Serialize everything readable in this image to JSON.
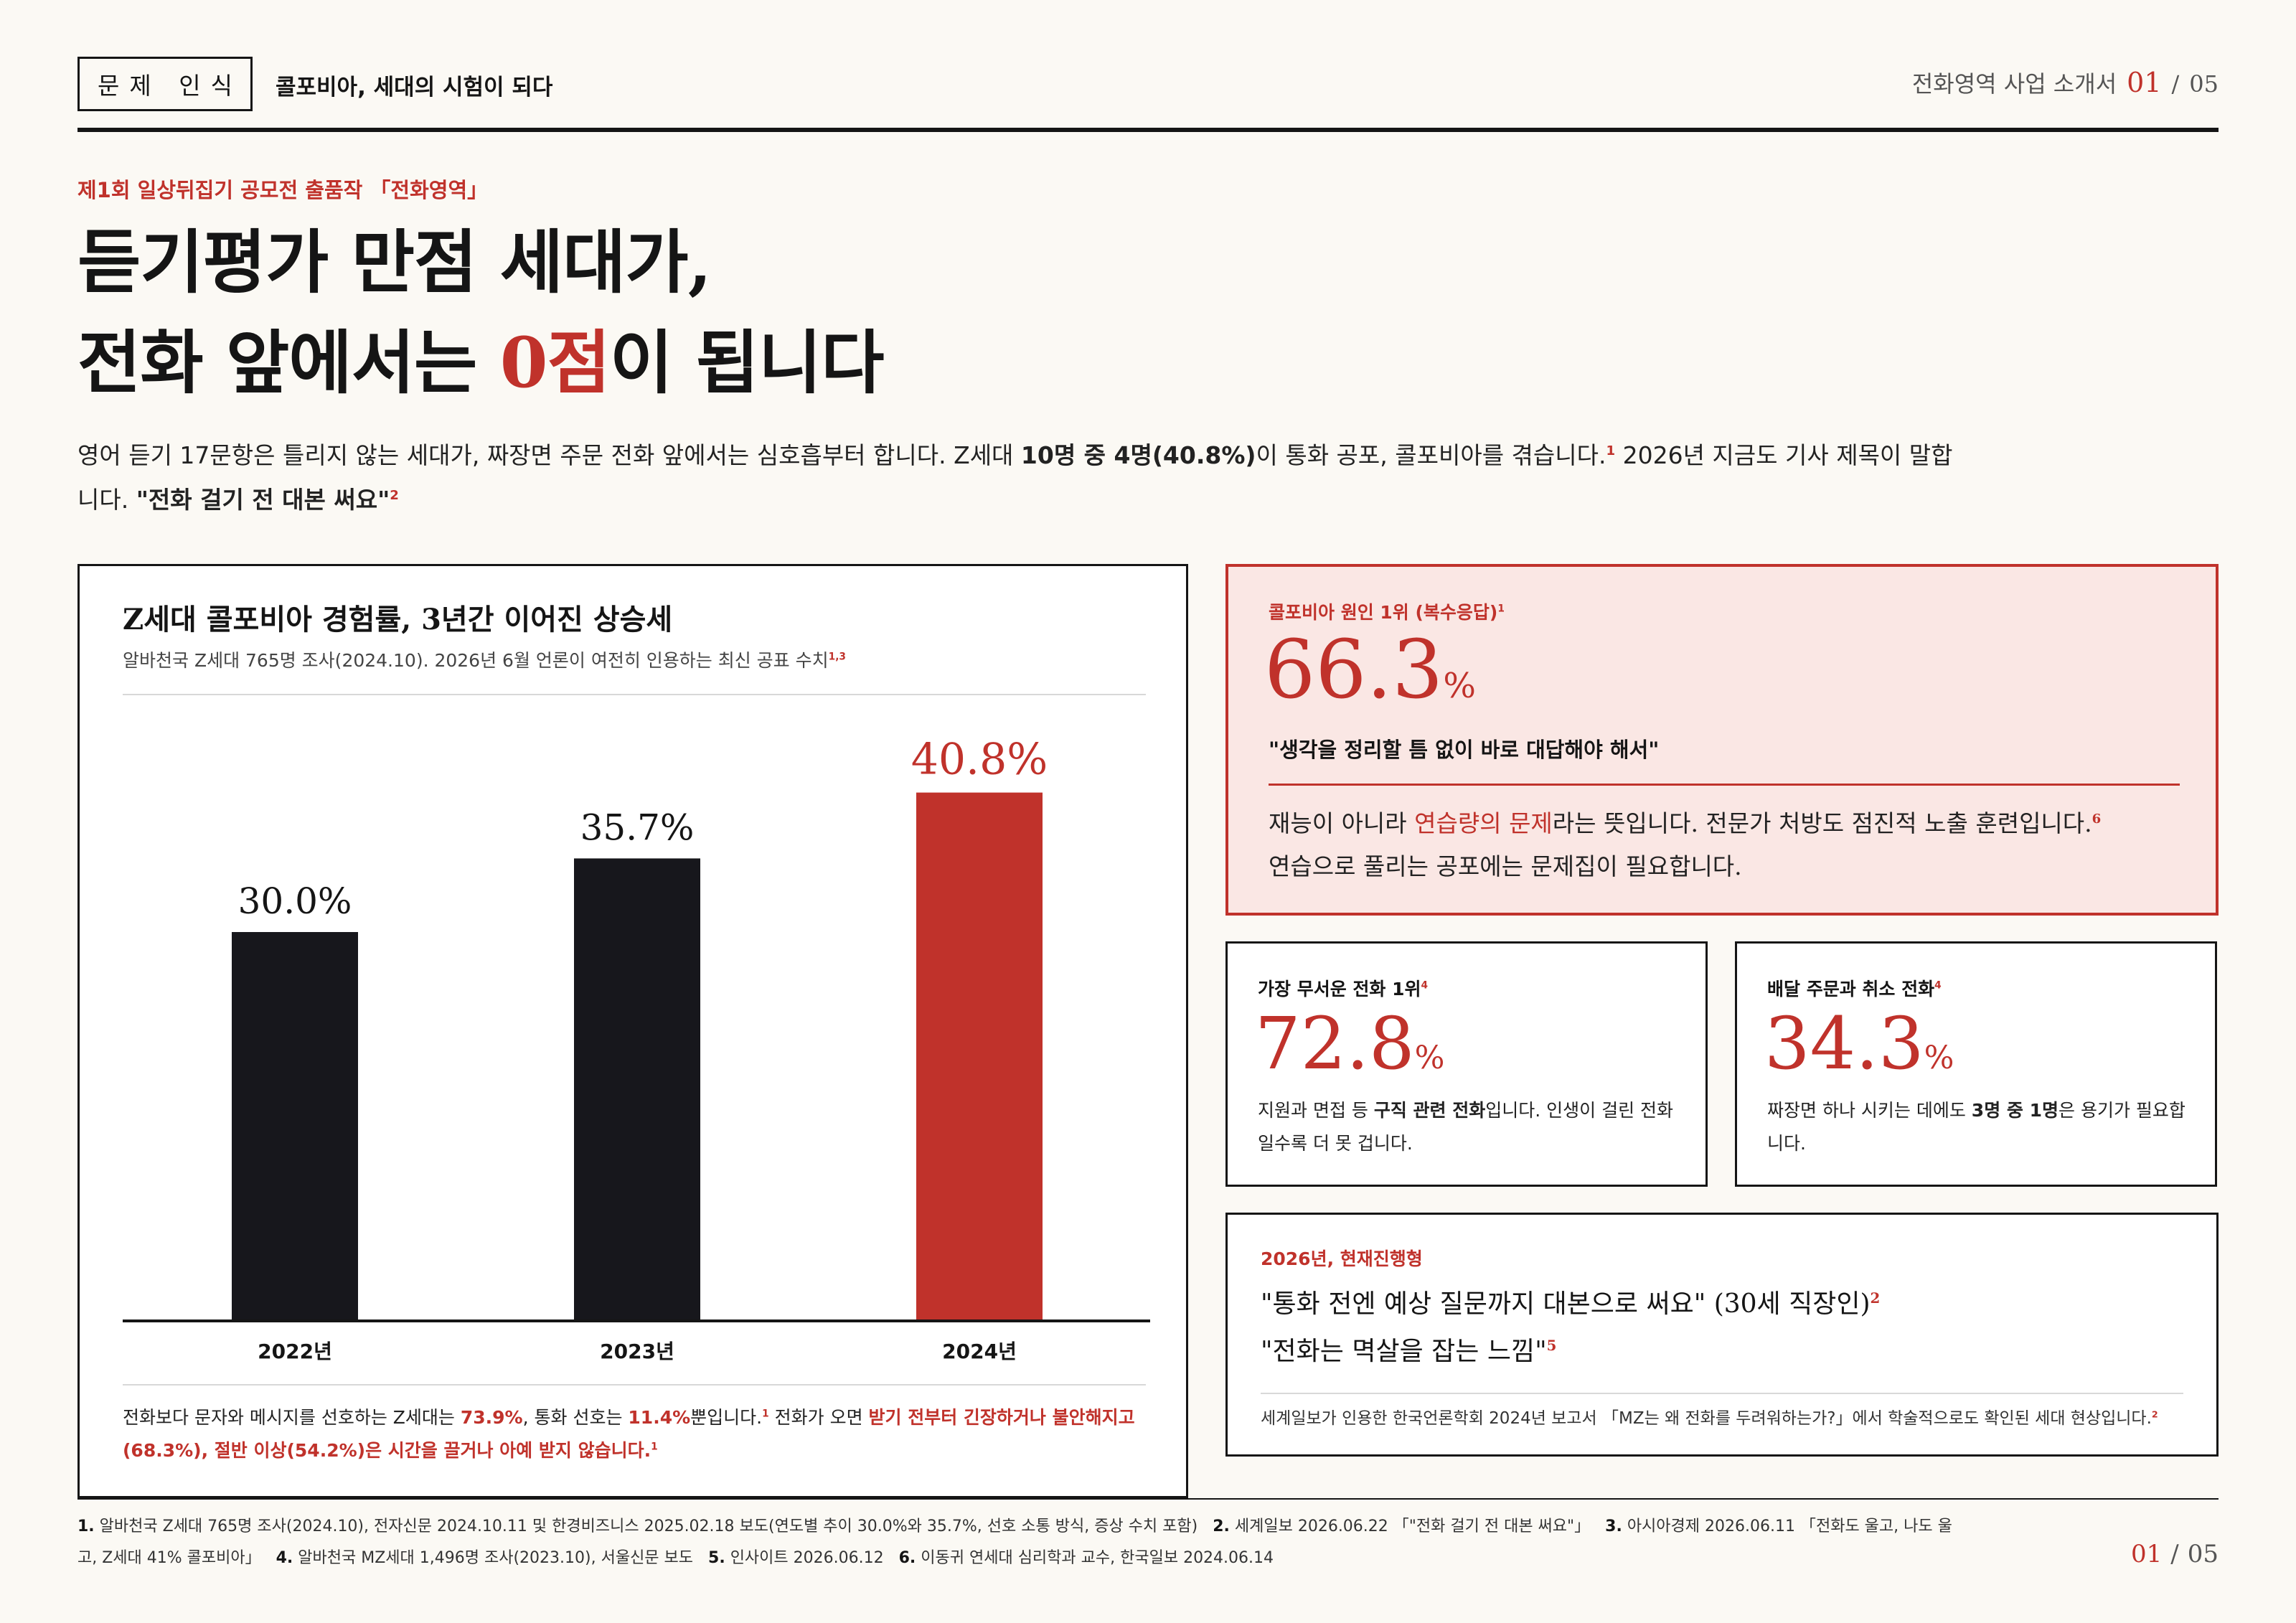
{
  "header": {
    "tag": "문제 인식",
    "subtitle": "콜포비아, 세대의 시험이 되다",
    "doc_title": "전화영역 사업 소개서",
    "page_current": "01",
    "page_sep": "/",
    "page_total": "05"
  },
  "kicker": "제1회 일상뒤집기 공모전 출품작 「전화영역」",
  "headline": {
    "line1": "듣기평가 만점 세대가,",
    "line2_pre": "전화 앞에서는 ",
    "line2_red": "0점",
    "line2_post": "이 됩니다"
  },
  "lede": {
    "p1": "영어 듣기 17문항은 틀리지 않는 세대가, 짜장면 주문 전화 앞에서는 심호흡부터 합니다. Z세대 ",
    "bold1": "10명 중 4명(40.8%)",
    "p2": "이 통화 공포, 콜포비아를 겪습니다.",
    "sup1": "1",
    "p3": " 2026년 지금도 기사 제목이 말합니다. ",
    "bold2": "\"전화 걸기 전 대본 써요\"",
    "sup2": "2"
  },
  "chart_card": {
    "title": "Z세대 콜포비아 경험률, 3년간 이어진 상승세",
    "subtitle": "알바천국 Z세대 765명 조사(2024.10). 2026년 6월 언론이 여전히 인용하는 최신 공표 수치",
    "subtitle_sup": "1,3",
    "foot": {
      "t1": "전화보다 문자와 메시지를 선호하는 Z세대는 ",
      "r1": "73.9%",
      "t2": ", 통화 선호는 ",
      "r2": "11.4%",
      "t3": "뿐입니다.",
      "s1": "1",
      "t4": " 전화가 오면 ",
      "r3": "받기 전부터 긴장하거나 불안해지고(68.3%), 절반 이상(54.2%)은 시간을 끌거나 아예 받지 않습니다.",
      "s2": "1"
    }
  },
  "chart_data": {
    "type": "bar",
    "title": "Z세대 콜포비아 경험률, 3년간 이어진 상승세",
    "categories": [
      "2022년",
      "2023년",
      "2024년"
    ],
    "values": [
      30.0,
      35.7,
      40.8
    ],
    "value_labels": [
      "30.0%",
      "35.7%",
      "40.8%"
    ],
    "colors": [
      "#17171c",
      "#17171c",
      "#c0322b"
    ],
    "ylim": [
      0,
      45
    ],
    "grid": false,
    "xlabel": "",
    "ylabel": ""
  },
  "cause_card": {
    "label": "콜포비아 원인 1위 (복수응답)",
    "label_sup": "1",
    "stat": "66.3",
    "pct": "%",
    "quote": "\"생각을 정리할 틈 없이 바로 대답해야 해서\"",
    "b1": "재능이 아니라 ",
    "b_red": "연습량의 문제",
    "b2": "라는 뜻입니다. 전문가 처방도 점진적 노출 훈련입니다.",
    "b_sup": "6",
    "b3": "연습으로 풀리는 공포에는 문제집이 필요합니다."
  },
  "stat_a": {
    "label": "가장 무서운 전화 1위",
    "sup": "4",
    "stat": "72.8",
    "pct": "%",
    "t1": "지원과 면접 등 ",
    "bold": "구직 관련 전화",
    "t2": "입니다. 인생이 걸린 전화일수록 더 못 겁니다."
  },
  "stat_b": {
    "label": "배달 주문과 취소 전화",
    "sup": "4",
    "stat": "34.3",
    "pct": "%",
    "t1": "짜장면 하나 시키는 데에도 ",
    "bold": "3명 중 1명",
    "t2": "은 용기가 필요합니다."
  },
  "quote_card": {
    "label": "2026년, 현재진행형",
    "q1": "\"통화 전엔 예상 질문까지 대본으로 써요\" (30세 직장인)",
    "q1_sup": "2",
    "q2": "\"전화는 멱살을 잡는 느낌\"",
    "q2_sup": "5",
    "foot": "세계일보가 인용한 한국언론학회 2024년 보고서 「MZ는 왜 전화를 두려워하는가?」에서 학술적으로도 확인된 세대 현상입니다.",
    "foot_sup": "2"
  },
  "notes": [
    {
      "n": "1.",
      "t": "알바천국 Z세대 765명 조사(2024.10), 전자신문 2024.10.11 및 한경비즈니스 2025.02.18 보도(연도별 추이 30.0%와 35.7%, 선호 소통 방식, 증상 수치 포함)"
    },
    {
      "n": "2.",
      "t": "세계일보 2026.06.22 「\"전화 걸기 전 대본 써요\"」"
    },
    {
      "n": "3.",
      "t": "아시아경제 2026.06.11 「전화도 울고, 나도 울고, Z세대 41% 콜포비아」"
    },
    {
      "n": "4.",
      "t": "알바천국 MZ세대 1,496명 조사(2023.10), 서울신문 보도"
    },
    {
      "n": "5.",
      "t": "인사이트 2026.06.12"
    },
    {
      "n": "6.",
      "t": "이동귀 연세대 심리학과 교수, 한국일보 2024.06.14"
    }
  ],
  "footer": {
    "page_current": "01",
    "page_sep": "/",
    "page_total": "05"
  }
}
